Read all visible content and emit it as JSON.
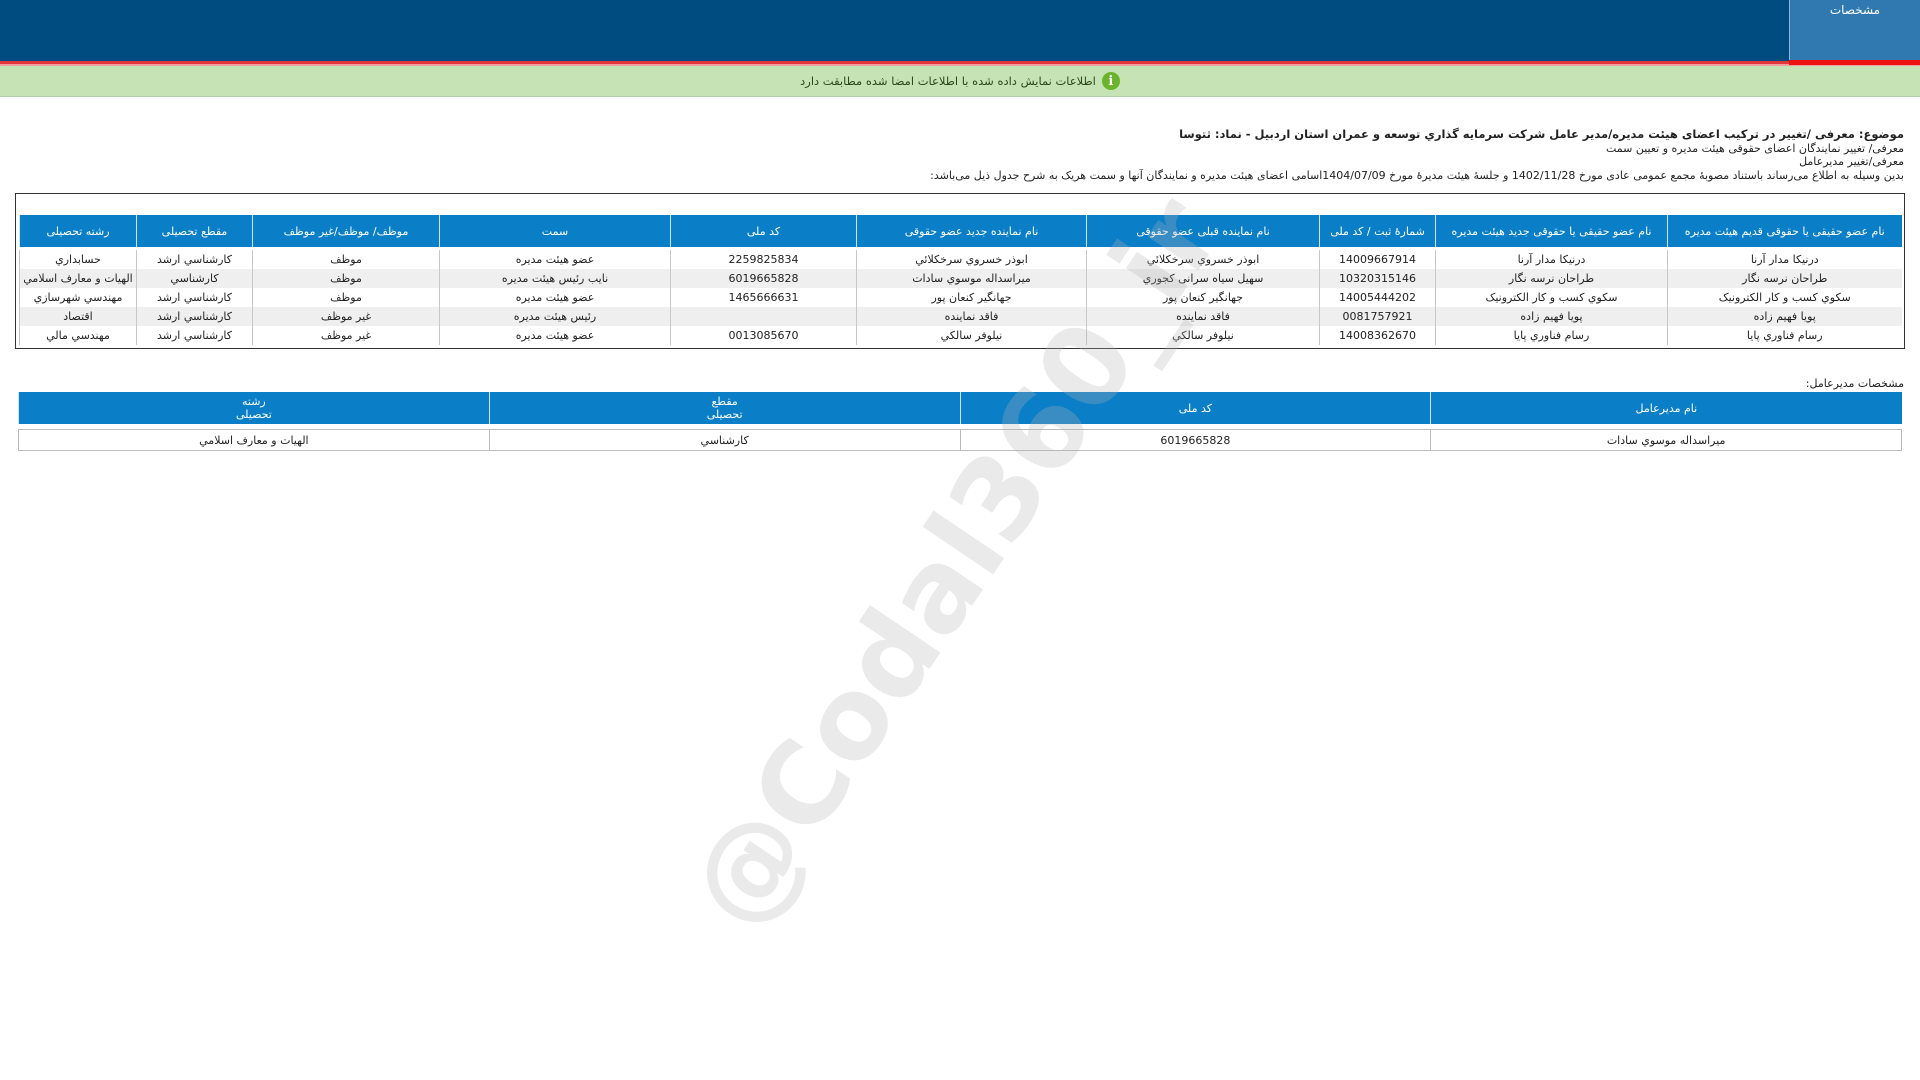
{
  "header": {
    "tab_label": "مشخصات",
    "brand_color": "#004b80",
    "accent_red": "#ee1111"
  },
  "notice": {
    "icon": "info-icon",
    "text": "اطلاعات نمایش داده شده با اطلاعات امضا شده مطابقت دارد"
  },
  "intro": {
    "subject": "موضوع: معرفی /تغییر در ترکیب اعضای هیئت مدیره/مدیر عامل شرکت سرمایه گذاري توسعه و عمران استان اردبیل - نماد: ثتوسا",
    "line1": "معرفی/ تغییر نمایندگان اعضای حقوقی هیئت مدیره و تعیین سمت",
    "line2": "معرفی/تغییر مدیرعامل",
    "line3": "بدین وسیله به اطلاع می‌رساند باستناد مصوبهٔ مجمع عمومی عادی مورخ  1402/11/28  و جلسهٔ هیئت مدیرهٔ مورخ  1404/07/09اسامی اعضای هیئت مدیره و نمایندگان آنها و سمت هریک به شرح جدول ذیل می‌باشد:"
  },
  "board_table": {
    "headers": [
      "نام عضو حقیقی یا حقوقی قدیم هیئت مدیره",
      "نام عضو حقیقی یا حقوقی جدید هیئت مدیره",
      "شمارهٔ ثبت / کد ملی",
      "نام نماینده قبلی عضو حقوقی",
      "نام نماینده جدید عضو حقوقی",
      "کد ملی",
      "سمت",
      "موظف/ موظف/غیر موظف",
      "مقطع تحصیلی",
      "رشته تحصیلی"
    ],
    "rows": [
      [
        "درنیکا مدار آرنا",
        "درنیکا مدار آرنا",
        "14009667914",
        "ابوذر خسروي سرخكلائي",
        "ابوذر خسروي سرخكلائي",
        "2259825834",
        "عضو هیئت مدیره",
        "موظف",
        "كارشناسي ارشد",
        "حسابداري"
      ],
      [
        "طراحان نرسه نگار",
        "طراحان نرسه نگار",
        "10320315146",
        "سهیل سیاه سرانی کجوري",
        "ميراسداله موسوي سادات",
        "6019665828",
        "نایب رئیس هیئت مدیره",
        "موظف",
        "كارشناسي",
        "الهیات و معارف اسلامي"
      ],
      [
        "سکوي کسب و کار الکترونیک",
        "سکوي کسب و کار الکترونیک",
        "14005444202",
        "جهانگیر کنعان پور",
        "جهانگیر کنعان پور",
        "1465666631",
        "عضو هیئت مدیره",
        "موظف",
        "كارشناسي ارشد",
        "مهندسي شهرسازي"
      ],
      [
        "پویا فهیم زاده",
        "پویا فهیم زاده",
        "0081757921",
        "فاقد نماینده",
        "فاقد نماینده",
        "",
        "رئیس هیئت مدیره",
        "غیر موظف",
        "كارشناسي ارشد",
        "اقتصاد"
      ],
      [
        "رسام فناوري پایا",
        "رسام فناوري پایا",
        "14008362670",
        "نیلوفر سالکي",
        "نیلوفر سالکي",
        "0013085670",
        "عضو هیئت مدیره",
        "غیر موظف",
        "كارشناسي ارشد",
        "مهندسي مالي"
      ]
    ]
  },
  "ceo": {
    "label": "مشخصات مدیرعامل:",
    "headers": [
      "نام مدیرعامل",
      "کد ملی",
      "مقطع\nتحصیلی",
      "رشته\nتحصیلی"
    ],
    "row": [
      "ميراسداله موسوي سادات",
      "6019665828",
      "كارشناسي",
      "الهیات و معارف اسلامي"
    ]
  },
  "watermark": "@Codal360_ir"
}
